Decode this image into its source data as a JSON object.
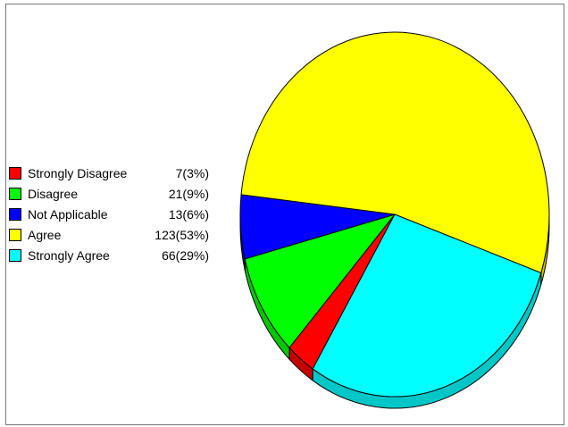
{
  "chart_data": {
    "type": "pie",
    "style": "3d",
    "legend_position": "left",
    "slices": [
      {
        "label": "Strongly Disagree",
        "value": 7,
        "percent": 3,
        "display": "7(3%)",
        "color": "#ff0000"
      },
      {
        "label": "Disagree",
        "value": 21,
        "percent": 9,
        "display": "21(9%)",
        "color": "#00ff00"
      },
      {
        "label": "Not Applicable",
        "value": 13,
        "percent": 6,
        "display": "13(6%)",
        "color": "#0000ff"
      },
      {
        "label": "Agree",
        "value": 123,
        "percent": 53,
        "display": "123(53%)",
        "color": "#ffff00"
      },
      {
        "label": "Strongly Agree",
        "value": 66,
        "percent": 29,
        "display": "66(29%)",
        "color": "#00ffff"
      }
    ]
  }
}
